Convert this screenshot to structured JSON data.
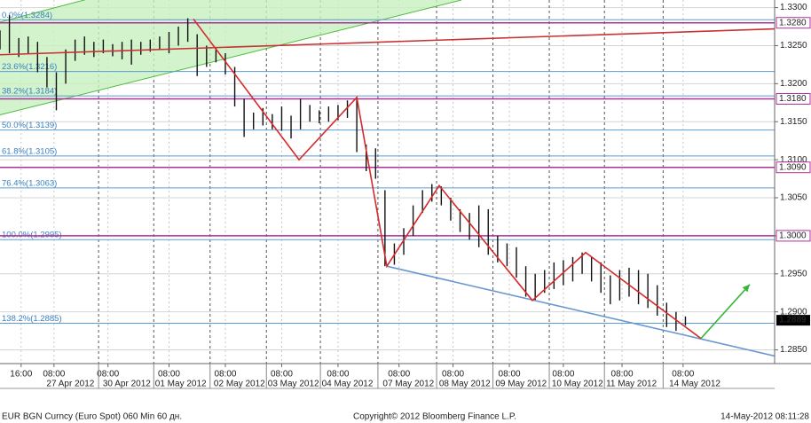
{
  "chart_data": {
    "type": "ohlc",
    "xlim": [
      0,
      330
    ],
    "ylim": [
      1.2832,
      1.331
    ],
    "yticks": [
      {
        "value": 1.285,
        "label": "1.2850"
      },
      {
        "value": 1.29,
        "label": "1.2900"
      },
      {
        "value": 1.295,
        "label": "1.2950"
      },
      {
        "value": 1.3,
        "label": "1.3000"
      },
      {
        "value": 1.305,
        "label": "1.3050"
      },
      {
        "value": 1.31,
        "label": "1.3100"
      },
      {
        "value": 1.315,
        "label": "1.3150"
      },
      {
        "value": 1.32,
        "label": "1.3200"
      },
      {
        "value": 1.325,
        "label": "1.3250"
      },
      {
        "value": 1.33,
        "label": "1.3300"
      }
    ],
    "xticks": [
      {
        "value": 9,
        "label": "16:00"
      },
      {
        "value": 23,
        "label": "08:00"
      },
      {
        "value": 46,
        "label": "08:00"
      },
      {
        "value": 72,
        "label": "08:00"
      },
      {
        "value": 96,
        "label": "08:00"
      },
      {
        "value": 120,
        "label": "08:00"
      },
      {
        "value": 144,
        "label": "08:00"
      },
      {
        "value": 170,
        "label": "08:00"
      },
      {
        "value": 193,
        "label": "08:00"
      },
      {
        "value": 217,
        "label": "08:00"
      },
      {
        "value": 240,
        "label": "08:00"
      },
      {
        "value": 265,
        "label": "08:00"
      },
      {
        "value": 291,
        "label": "08:00"
      }
    ],
    "date_ticks": [
      {
        "value": 30,
        "label": "27 Apr 2012"
      },
      {
        "value": 54,
        "label": "30 Apr 2012"
      },
      {
        "value": 77,
        "label": "01 May 2012"
      },
      {
        "value": 102,
        "label": "02 May 2012"
      },
      {
        "value": 125,
        "label": "03 May 2012"
      },
      {
        "value": 148,
        "label": "04 May 2012"
      },
      {
        "value": 174,
        "label": "07 May 2012"
      },
      {
        "value": 198,
        "label": "08 May 2012"
      },
      {
        "value": 222,
        "label": "09 May 2012"
      },
      {
        "value": 246,
        "label": "10 May 2012"
      },
      {
        "value": 269,
        "label": "11 May 2012"
      },
      {
        "value": 296,
        "label": "14 May 2012"
      }
    ],
    "grid": true,
    "bars": {
      "color": "#111111",
      "x": [
        0,
        4,
        8,
        12,
        16,
        20,
        24,
        28,
        32,
        36,
        40,
        44,
        48,
        52,
        56,
        60,
        64,
        68,
        72,
        76,
        80,
        84,
        88,
        92,
        96,
        100,
        104,
        108,
        112,
        116,
        120,
        124,
        128,
        132,
        136,
        140,
        144,
        148,
        152,
        156,
        160,
        164,
        168,
        172,
        176,
        180,
        184,
        188,
        192,
        196,
        200,
        204,
        208,
        212,
        216,
        220,
        224,
        228,
        232,
        236,
        240,
        244,
        248,
        252,
        256,
        260,
        264,
        268,
        272,
        276,
        280,
        284,
        288,
        292
      ],
      "low": [
        1.3245,
        1.324,
        1.3235,
        1.324,
        1.3215,
        1.3195,
        1.3165,
        1.32,
        1.323,
        1.3238,
        1.3235,
        1.324,
        1.3236,
        1.3232,
        1.3225,
        1.3238,
        1.3242,
        1.3245,
        1.324,
        1.325,
        1.3255,
        1.321,
        1.3222,
        1.3228,
        1.3212,
        1.317,
        1.313,
        1.314,
        1.3145,
        1.314,
        1.3138,
        1.3128,
        1.314,
        1.315,
        1.3148,
        1.315,
        1.3152,
        1.3155,
        1.311,
        1.3085,
        1.3075,
        1.296,
        1.2962,
        1.2975,
        1.3,
        1.303,
        1.3045,
        1.304,
        1.302,
        1.3005,
        1.2995,
        1.2985,
        1.2975,
        1.2965,
        1.296,
        1.2945,
        1.292,
        1.2915,
        1.2925,
        1.293,
        1.2935,
        1.294,
        1.295,
        1.294,
        1.2925,
        1.291,
        1.2915,
        1.292,
        1.291,
        1.2905,
        1.2895,
        1.288,
        1.2875,
        1.2882
      ],
      "high": [
        1.327,
        1.329,
        1.326,
        1.3262,
        1.3255,
        1.3235,
        1.3215,
        1.3245,
        1.3258,
        1.3262,
        1.3255,
        1.3258,
        1.3252,
        1.3255,
        1.3258,
        1.3255,
        1.3258,
        1.3262,
        1.3268,
        1.3275,
        1.3286,
        1.3265,
        1.325,
        1.3248,
        1.324,
        1.3222,
        1.318,
        1.3162,
        1.3168,
        1.316,
        1.317,
        1.3158,
        1.318,
        1.3172,
        1.3165,
        1.317,
        1.3172,
        1.3178,
        1.3182,
        1.312,
        1.3115,
        1.306,
        1.299,
        1.301,
        1.304,
        1.306,
        1.3068,
        1.3065,
        1.305,
        1.3035,
        1.303,
        1.304,
        1.3035,
        1.3,
        1.299,
        1.2985,
        1.296,
        1.295,
        1.2955,
        1.2965,
        1.2968,
        1.2972,
        1.2978,
        1.2972,
        1.2965,
        1.2948,
        1.2955,
        1.2958,
        1.2955,
        1.295,
        1.2935,
        1.2912,
        1.29,
        1.2894
      ]
    },
    "fib_color": "#5b9bd5",
    "fib_levels": [
      {
        "value": 1.3284,
        "label": "0.0%(1.3284)"
      },
      {
        "value": 1.3216,
        "label": "23.6%(1.3216)"
      },
      {
        "value": 1.3184,
        "label": "38.2%(1.3184)"
      },
      {
        "value": 1.3139,
        "label": "50.0%(1.3139)"
      },
      {
        "value": 1.3105,
        "label": "61.8%(1.3105)"
      },
      {
        "value": 1.3063,
        "label": "76.4%(1.3063)"
      },
      {
        "value": 1.2995,
        "label": "100.0%(1.2995)"
      },
      {
        "value": 1.2885,
        "label": "138.2%(1.2885)"
      }
    ],
    "level_color": "#b0309b",
    "levels": [
      {
        "value": 1.328,
        "label": "1.3280"
      },
      {
        "value": 1.318,
        "label": "1.3180"
      },
      {
        "value": 1.309,
        "label": "1.3090"
      },
      {
        "value": 1.3,
        "label": "1.3000"
      }
    ],
    "last_price": {
      "value": 1.2889,
      "label": "1.2889"
    },
    "channel": {
      "color": "#4cbb3c",
      "fill": "#c8f0c0",
      "lower": {
        "x": [
          0,
          196.6
        ],
        "y": [
          1.3159,
          1.331
        ]
      },
      "upper": {
        "x": [
          0,
          120
        ],
        "y": [
          1.3281,
          1.3378
        ]
      }
    },
    "lines": [
      {
        "color": "#c83232",
        "x": [
          0,
          330
        ],
        "y": [
          1.3238,
          1.3272
        ]
      },
      {
        "color": "#6a98d0",
        "x": [
          164.8,
          330
        ],
        "y": [
          1.296,
          1.2842
        ]
      },
      {
        "color": "#d42a2a",
        "x": [
          82.4,
          127.4,
          152,
          164.8,
          187.1,
          226.8,
          249.5,
          298.6
        ],
        "y": [
          1.3285,
          1.31,
          1.3182,
          1.296,
          1.3066,
          1.2915,
          1.2978,
          1.2865
        ]
      },
      {
        "color": "#3cb43c",
        "x": [
          298.6,
          319.4
        ],
        "y": [
          1.2865,
          1.2936
        ]
      }
    ],
    "footer": {
      "left": "EUR BGN Curncy (Euro Spot) 060 Min 60 дн.",
      "center": "Copyright© 2012 Bloomberg Finance L.P.",
      "right": "14-May-2012 08:11:28"
    }
  }
}
